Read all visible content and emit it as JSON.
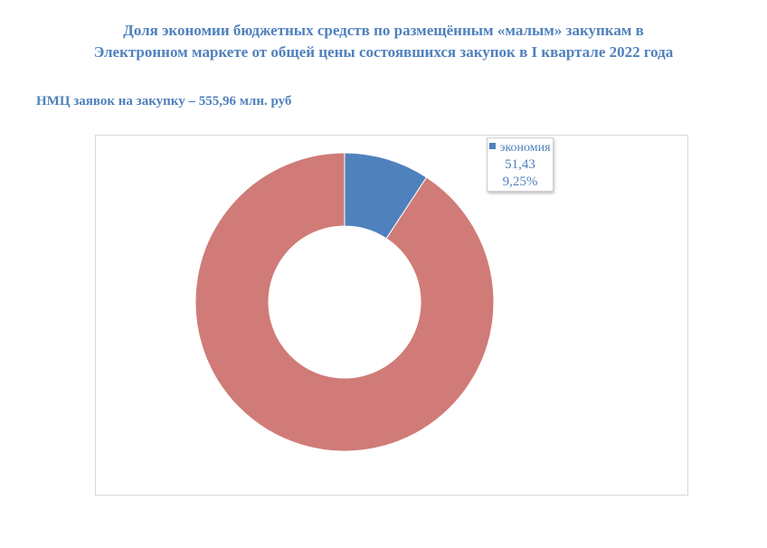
{
  "title_line1": "Доля экономии бюджетных средств по размещённым «малым» закупкам в",
  "title_line2": "Электронном маркете от общей цены состоявшихся закупок в I квартале 2022 года",
  "subtitle": "НМЦ заявок на закупку – 555,96 млн. руб",
  "colors": {
    "economy": "#4f81bd",
    "rest": "#d07b77",
    "text": "#4f81bd"
  },
  "chart_data": {
    "type": "pie",
    "title": "Доля экономии бюджетных средств по размещённым «малым» закупкам в Электронном маркете от общей цены состоявшихся закупок в I квартале 2022 года",
    "subtitle": "НМЦ заявок на закупку – 555,96 млн. руб",
    "donut": true,
    "slices": [
      {
        "label": "экономия",
        "value": 51.43,
        "percent": 9.25,
        "value_text": "51,43",
        "percent_text": "9,25%",
        "color": "#4f81bd"
      },
      {
        "label": "",
        "value": 504.53,
        "percent": 90.75,
        "color": "#d07b77"
      }
    ]
  }
}
